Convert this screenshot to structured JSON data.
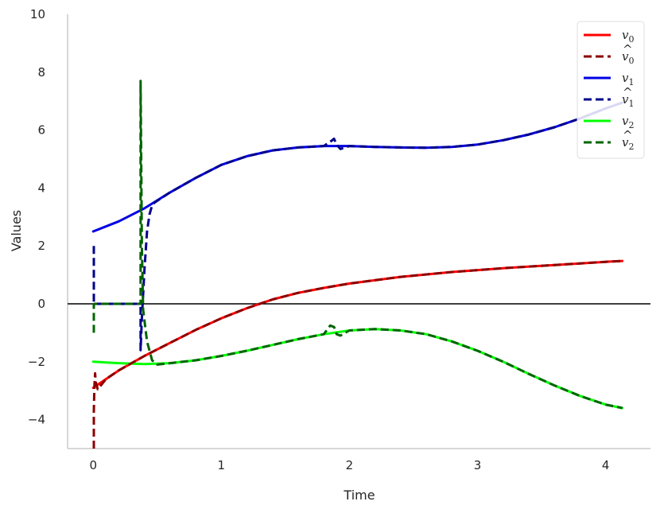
{
  "chart_data": {
    "type": "line",
    "title": "",
    "xlabel": "Time",
    "ylabel": "Values",
    "xlim": [
      -0.2,
      4.35
    ],
    "ylim": [
      -5,
      10
    ],
    "x_ticks": [
      "0",
      "1",
      "2",
      "3",
      "4"
    ],
    "y_ticks": [
      "−4",
      "−2",
      "0",
      "2",
      "4",
      "6",
      "8",
      "10"
    ],
    "x_tick_values": [
      0,
      1,
      2,
      3,
      4
    ],
    "y_tick_values": [
      -4,
      -2,
      0,
      2,
      4,
      6,
      8,
      10
    ],
    "grid": false,
    "zero_line": true,
    "legend_position": "top-right",
    "series": [
      {
        "name": "v0",
        "label_base": "v",
        "label_sub": "0",
        "hat": false,
        "color": "#ff0000",
        "dash": false,
        "x": [
          0,
          0.1,
          0.2,
          0.3,
          0.4,
          0.6,
          0.8,
          1.0,
          1.2,
          1.4,
          1.6,
          1.8,
          2.0,
          2.4,
          2.8,
          3.2,
          3.6,
          4.0,
          4.13
        ],
        "y": [
          -2.9,
          -2.6,
          -2.3,
          -2.05,
          -1.8,
          -1.35,
          -0.9,
          -0.5,
          -0.15,
          0.15,
          0.38,
          0.55,
          0.7,
          0.93,
          1.1,
          1.23,
          1.34,
          1.45,
          1.48
        ]
      },
      {
        "name": "v0-hat",
        "label_base": "v",
        "label_sub": "0",
        "hat": true,
        "color": "#8b0000",
        "dash": true,
        "x": [
          0.005,
          0.005,
          0.01,
          0.015,
          0.02,
          0.035,
          0.1,
          0.2,
          0.3,
          0.4,
          0.6,
          0.8,
          1.0,
          1.2,
          1.4,
          1.6,
          1.8,
          2.0,
          2.4,
          2.8,
          3.2,
          3.6,
          4.0,
          4.13
        ],
        "y": [
          -5,
          -3.7,
          -2.8,
          -2.4,
          -2.7,
          -2.95,
          -2.6,
          -2.3,
          -2.05,
          -1.8,
          -1.35,
          -0.9,
          -0.5,
          -0.15,
          0.15,
          0.38,
          0.55,
          0.7,
          0.93,
          1.1,
          1.23,
          1.34,
          1.45,
          1.48
        ]
      },
      {
        "name": "v1",
        "label_base": "v",
        "label_sub": "1",
        "hat": false,
        "color": "#0000e6",
        "dash": false,
        "x": [
          0,
          0.2,
          0.4,
          0.6,
          0.8,
          1.0,
          1.2,
          1.4,
          1.6,
          1.8,
          2.0,
          2.2,
          2.4,
          2.6,
          2.8,
          3.0,
          3.2,
          3.4,
          3.6,
          3.8,
          4.0,
          4.13
        ],
        "y": [
          2.5,
          2.85,
          3.3,
          3.85,
          4.35,
          4.8,
          5.1,
          5.3,
          5.4,
          5.45,
          5.45,
          5.42,
          5.4,
          5.39,
          5.42,
          5.5,
          5.65,
          5.85,
          6.1,
          6.4,
          6.75,
          6.95
        ]
      },
      {
        "name": "v1-hat",
        "label_base": "v",
        "label_sub": "1",
        "hat": true,
        "color": "#00008b",
        "dash": true,
        "x": [
          0.005,
          0.005,
          0.01,
          0.37,
          0.37,
          0.38,
          0.4,
          0.42,
          0.44,
          0.46,
          0.48,
          0.6,
          0.8,
          1.0,
          1.2,
          1.4,
          1.6,
          1.8,
          1.85,
          1.88,
          1.9,
          1.93,
          2.0,
          2.2,
          2.4,
          2.6,
          2.8,
          3.0,
          3.2,
          3.4,
          3.6,
          3.8,
          4.0,
          4.13
        ],
        "y": [
          2.0,
          0.02,
          0.0,
          0.0,
          -1.6,
          -0.5,
          1.2,
          2.5,
          3.1,
          3.4,
          3.5,
          3.85,
          4.35,
          4.8,
          5.1,
          5.3,
          5.4,
          5.45,
          5.6,
          5.7,
          5.5,
          5.35,
          5.45,
          5.42,
          5.4,
          5.39,
          5.42,
          5.5,
          5.65,
          5.85,
          6.1,
          6.4,
          6.75,
          6.95
        ]
      },
      {
        "name": "v2",
        "label_base": "v",
        "label_sub": "2",
        "hat": false,
        "color": "#00ff00",
        "dash": false,
        "x": [
          0,
          0.2,
          0.4,
          0.6,
          0.8,
          1.0,
          1.2,
          1.4,
          1.6,
          1.8,
          2.0,
          2.2,
          2.4,
          2.6,
          2.8,
          3.0,
          3.2,
          3.4,
          3.6,
          3.8,
          4.0,
          4.13
        ],
        "y": [
          -2.0,
          -2.05,
          -2.08,
          -2.05,
          -1.95,
          -1.8,
          -1.62,
          -1.42,
          -1.22,
          -1.05,
          -0.92,
          -0.87,
          -0.92,
          -1.05,
          -1.3,
          -1.62,
          -2.0,
          -2.42,
          -2.82,
          -3.18,
          -3.48,
          -3.6
        ]
      },
      {
        "name": "v2-hat",
        "label_base": "v",
        "label_sub": "2",
        "hat": true,
        "color": "#006400",
        "dash": true,
        "x": [
          0.005,
          0.005,
          0.01,
          0.37,
          0.37,
          0.375,
          0.38,
          0.39,
          0.42,
          0.46,
          0.5,
          0.6,
          0.8,
          1.0,
          1.2,
          1.4,
          1.6,
          1.8,
          1.85,
          1.88,
          1.9,
          1.93,
          2.0,
          2.2,
          2.4,
          2.6,
          2.8,
          3.0,
          3.2,
          3.4,
          3.6,
          3.8,
          4.0,
          4.13
        ],
        "y": [
          -1.0,
          -0.02,
          0.0,
          0.0,
          7.7,
          5.0,
          2.0,
          -0.2,
          -1.3,
          -1.95,
          -2.1,
          -2.05,
          -1.95,
          -1.8,
          -1.62,
          -1.42,
          -1.22,
          -1.05,
          -0.75,
          -0.8,
          -1.05,
          -1.1,
          -0.92,
          -0.87,
          -0.92,
          -1.05,
          -1.3,
          -1.62,
          -2.0,
          -2.42,
          -2.82,
          -3.18,
          -3.48,
          -3.6
        ]
      }
    ]
  }
}
